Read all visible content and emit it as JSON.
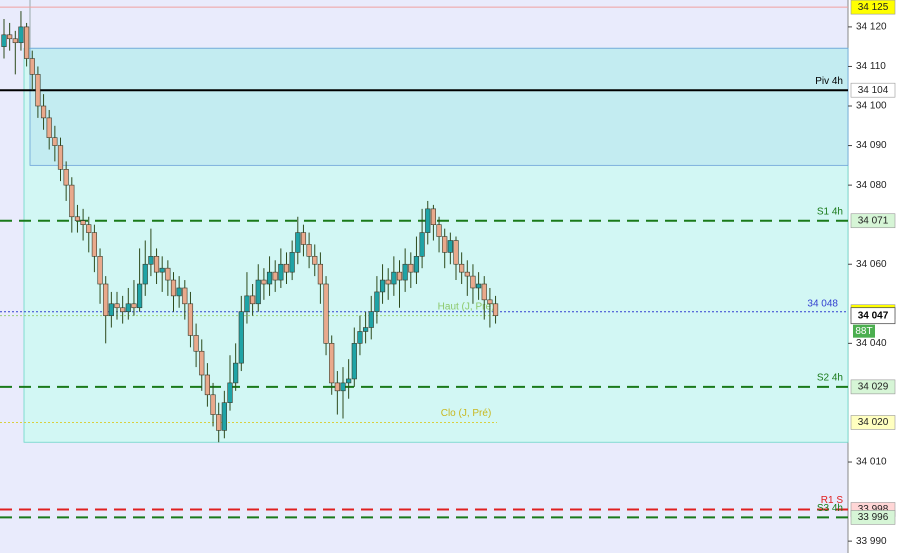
{
  "chart_data": {
    "type": "candlestick",
    "ylim": [
      33987,
      34126.8
    ],
    "yticks": [
      {
        "value": 34120,
        "label": "34 120"
      },
      {
        "value": 34110,
        "label": "34 110"
      },
      {
        "value": 34100,
        "label": "34 100"
      },
      {
        "value": 34090,
        "label": "34 090"
      },
      {
        "value": 34080,
        "label": "34 080"
      },
      {
        "value": 34060,
        "label": "34 060"
      },
      {
        "value": 34040,
        "label": "34 040"
      },
      {
        "value": 34010,
        "label": "34 010"
      },
      {
        "value": 33990,
        "label": "33 990"
      }
    ],
    "up_color": "#1fa3a6",
    "down_color": "#e9a98c",
    "open": [
      34115,
      34118,
      34117,
      34116,
      34120,
      34112,
      34108,
      34100,
      34097,
      34092,
      34090,
      34084,
      34080,
      34072,
      34071,
      34070,
      34068,
      34062,
      34055,
      34047,
      34050,
      34049,
      34048,
      34050,
      34049,
      34055,
      34060,
      34062,
      34058,
      34059,
      34056,
      34052,
      34054,
      34050,
      34042,
      34038,
      34032,
      34027,
      34022,
      34018,
      34025,
      34030,
      34035,
      34048,
      34052,
      34050,
      34056,
      34055,
      34058,
      34056,
      34060,
      34058,
      34063,
      34068,
      34065,
      34062,
      34060,
      34055,
      34040,
      34030,
      34028,
      34030,
      34031,
      34040,
      34043,
      34044,
      34048,
      34053,
      34056,
      34055,
      34058,
      34056,
      34060,
      34058,
      34062,
      34068,
      34074,
      34070,
      34067,
      34063,
      34066,
      34060,
      34058,
      34057,
      34054,
      34055,
      34051,
      34050
    ],
    "high": [
      34122,
      34121,
      34119,
      34124,
      34121,
      34114,
      34110,
      34103,
      34099,
      34095,
      34092,
      34086,
      34082,
      34075,
      34074,
      34072,
      34070,
      34064,
      34057,
      34053,
      34053,
      34052,
      34054,
      34056,
      34064,
      34066,
      34069,
      34064,
      34062,
      34061,
      34058,
      34057,
      34056,
      34053,
      34045,
      34041,
      34035,
      34030,
      34025,
      34028,
      34037,
      34040,
      34052,
      34058,
      34055,
      34060,
      34059,
      34062,
      34061,
      34064,
      34063,
      34066,
      34072,
      34070,
      34068,
      34065,
      34063,
      34057,
      34042,
      34033,
      34034,
      34036,
      34044,
      34047,
      34048,
      34052,
      34057,
      34060,
      34059,
      34062,
      34061,
      34064,
      34063,
      34067,
      34074,
      34076,
      34075,
      34072,
      34069,
      34068,
      34067,
      34063,
      34061,
      34060,
      34058,
      34057,
      34054,
      34052
    ],
    "low": [
      34112,
      34114,
      34108,
      34114,
      34110,
      34104,
      34097,
      34094,
      34089,
      34086,
      34081,
      34076,
      34068,
      34068,
      34066,
      34063,
      34058,
      34050,
      34040,
      34044,
      34046,
      34045,
      34046,
      34047,
      34048,
      34052,
      34057,
      34055,
      34053,
      34052,
      34048,
      34049,
      34046,
      34039,
      34034,
      34028,
      34024,
      34019,
      34015,
      34016,
      34023,
      34028,
      34033,
      34045,
      34047,
      34048,
      34051,
      34052,
      34053,
      34054,
      34055,
      34056,
      34060,
      34062,
      34059,
      34057,
      34050,
      34037,
      34027,
      34022,
      34021,
      34026,
      34029,
      34037,
      34040,
      34041,
      34045,
      34050,
      34051,
      34052,
      34049,
      34053,
      34054,
      34055,
      34059,
      34065,
      34066,
      34063,
      34059,
      34060,
      34056,
      34055,
      34052,
      34050,
      34051,
      34046,
      34044,
      34045
    ],
    "close": [
      34118,
      34117,
      34116,
      34120,
      34112,
      34108,
      34100,
      34097,
      34092,
      34090,
      34084,
      34080,
      34072,
      34071,
      34070,
      34068,
      34062,
      34055,
      34047,
      34050,
      34049,
      34048,
      34050,
      34049,
      34055,
      34060,
      34062,
      34058,
      34059,
      34056,
      34052,
      34054,
      34050,
      34042,
      34038,
      34032,
      34027,
      34022,
      34018,
      34025,
      34030,
      34035,
      34048,
      34052,
      34050,
      34056,
      34055,
      34058,
      34056,
      34060,
      34058,
      34063,
      34068,
      34065,
      34062,
      34060,
      34055,
      34040,
      34030,
      34028,
      34030,
      34031,
      34040,
      34043,
      34044,
      34048,
      34053,
      34056,
      34055,
      34058,
      34056,
      34060,
      34058,
      34062,
      34068,
      34074,
      34070,
      34067,
      34063,
      34066,
      34060,
      34058,
      34057,
      34054,
      34055,
      34051,
      34050,
      34047
    ],
    "zones": [
      {
        "from": 34015,
        "to": 34114.6,
        "color": "#d2f7f4"
      },
      {
        "from": 34085,
        "to": 34114.6,
        "color": "#c3ecf1"
      }
    ],
    "levels": [
      {
        "value": 34125,
        "value_label": "34 125",
        "color": "#f0a0a0",
        "style": "thin",
        "box": "#ffff00"
      },
      {
        "name": "Piv 4h",
        "value": 34104,
        "value_label": "34 104",
        "color": "#000000",
        "style": "solid",
        "box": "#ffffff"
      },
      {
        "name": "S1 4h",
        "value": 34071,
        "value_label": "34 071",
        "color": "#1a7a1a",
        "style": "dashed",
        "box": "#d6f5d6"
      },
      {
        "value": 34048,
        "value_label": "34 048",
        "color": "#3340d0",
        "style": "dotted",
        "box": "#ffff00",
        "side_text": "34 048"
      },
      {
        "name": "Haut (J, Pré)",
        "value": 34047,
        "color": "#9ad07a",
        "style": "dotted"
      },
      {
        "name": "S2 4h",
        "value": 34029,
        "value_label": "34 029",
        "color": "#1a7a1a",
        "style": "dashed",
        "box": "#d6f5d6"
      },
      {
        "name": "Clo (J, Pré)",
        "value": 34020,
        "value_label": "34 020",
        "color": "#d8d040",
        "style": "dotted",
        "box": "#ffffc0"
      },
      {
        "name": "R1 S",
        "value": 33998,
        "value_label": "33 998",
        "color": "#e02020",
        "style": "dashed",
        "box": "#ffd6d6"
      },
      {
        "name": "S3 4h",
        "value": 33996,
        "value_label": "33 996",
        "color": "#1a7a1a",
        "style": "dashed",
        "box": "#d6f5d6"
      }
    ],
    "last_price": {
      "value": 34047,
      "label": "34 047"
    },
    "tick_tag": "88T"
  }
}
